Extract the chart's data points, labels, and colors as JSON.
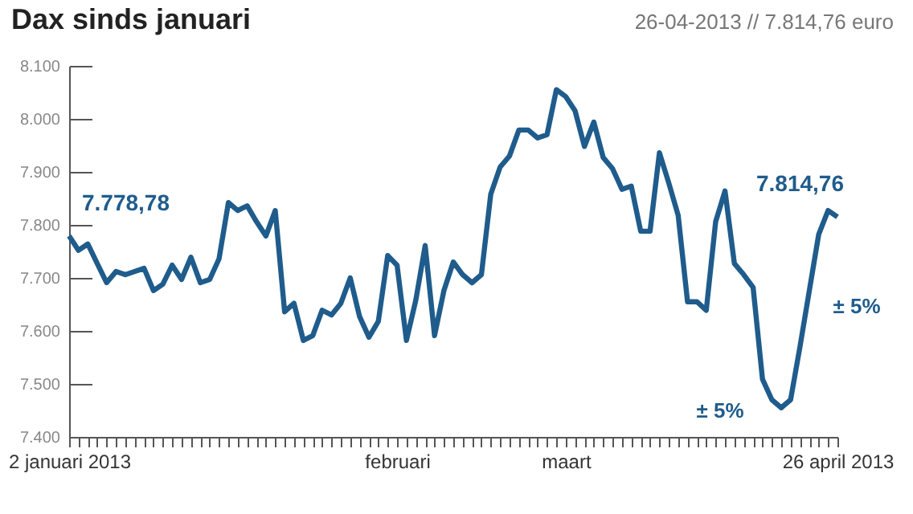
{
  "chart_data": {
    "type": "line",
    "title": "Dax sinds januari",
    "subtitle": "26-04-2013 // 7.814,76 euro",
    "categories": [
      "2 januari 2013",
      null,
      null,
      null,
      null,
      null,
      null,
      null,
      null,
      null,
      null,
      null,
      null,
      null,
      null,
      null,
      null,
      null,
      null,
      null,
      null,
      null,
      null,
      null,
      null,
      null,
      null,
      null,
      null,
      null,
      null,
      null,
      null,
      null,
      null,
      "februari",
      null,
      null,
      null,
      null,
      null,
      null,
      null,
      null,
      null,
      null,
      null,
      null,
      null,
      null,
      null,
      null,
      null,
      "maart",
      null,
      null,
      null,
      null,
      null,
      null,
      null,
      null,
      null,
      null,
      null,
      null,
      null,
      null,
      null,
      null,
      null,
      null,
      null,
      null,
      null,
      null,
      null,
      null,
      null,
      null,
      null,
      null,
      "26 april 2013"
    ],
    "series": [
      {
        "color": "#1f5c8c",
        "values": [
          7779,
          7752,
          7764,
          7727,
          7691,
          7712,
          7706,
          7712,
          7718,
          7676,
          7688,
          7724,
          7697,
          7739,
          7691,
          7697,
          7736,
          7842,
          7827,
          7836,
          7806,
          7779,
          7827,
          7636,
          7652,
          7582,
          7591,
          7639,
          7630,
          7652,
          7700,
          7627,
          7588,
          7618,
          7742,
          7724,
          7582,
          7658,
          7761,
          7591,
          7676,
          7730,
          7706,
          7691,
          7706,
          7858,
          7909,
          7930,
          7979,
          7979,
          7964,
          7970,
          8055,
          8042,
          8015,
          7948,
          7994,
          7927,
          7906,
          7867,
          7873,
          7788,
          7788,
          7936,
          7879,
          7818,
          7655,
          7655,
          7639,
          7806,
          7864,
          7727,
          7706,
          7682,
          7509,
          7470,
          7455,
          7470,
          7570,
          7676,
          7782,
          7827,
          7815
        ]
      }
    ],
    "ylim": [
      7400,
      8100
    ],
    "yticks": [
      {
        "value": 7400,
        "label": "7.400"
      },
      {
        "value": 7500,
        "label": "7.500"
      },
      {
        "value": 7600,
        "label": "7.600"
      },
      {
        "value": 7700,
        "label": "7.700"
      },
      {
        "value": 7800,
        "label": "7.800"
      },
      {
        "value": 7900,
        "label": "7.900"
      },
      {
        "value": 8000,
        "label": "8.000"
      },
      {
        "value": 8100,
        "label": "8.100"
      }
    ],
    "grid": false,
    "marker": "none",
    "line_style": "solid",
    "annotations": [
      {
        "text": "7.778,78",
        "x": "2 januari 2013",
        "y": 7778.78
      },
      {
        "text": "7.814,76",
        "x": "26 april 2013",
        "y": 7814.76
      },
      "± 5%",
      "± 5%"
    ]
  }
}
